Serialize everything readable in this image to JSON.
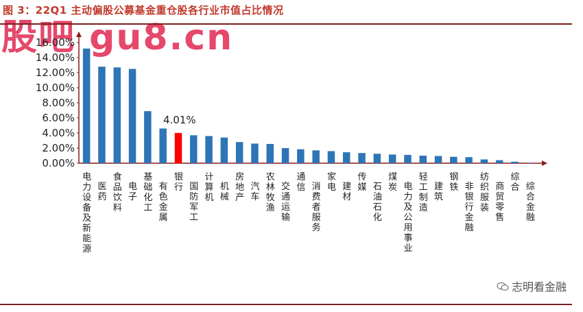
{
  "header": {
    "title": "图 3：22Q1 主动偏股公募基金重仓股各行业市值占比情况",
    "watermark": "股吧 gu8.cn"
  },
  "footer": {
    "brand": "志明看金融",
    "brand_icon": "wechat-icon"
  },
  "colors": {
    "bar": "#2e75b6",
    "highlight": "#ff0000",
    "axis": "#8b1a1a",
    "title": "#c0392b"
  },
  "chart_data": {
    "type": "bar",
    "title": "",
    "xlabel": "",
    "ylabel": "",
    "ylim": [
      0,
      16
    ],
    "yticks": [
      "0.00%",
      "2.00%",
      "4.00%",
      "6.00%",
      "8.00%",
      "10.00%",
      "12.00%",
      "14.00%",
      "16.00%"
    ],
    "categories": [
      "电力设备及新能源",
      "医药",
      "食品饮料",
      "电子",
      "基础化工",
      "有色金属",
      "银行",
      "国防军工",
      "计算机",
      "机械",
      "房地产",
      "汽车",
      "农林牧渔",
      "交通运输",
      "通信",
      "消费者服务",
      "家电",
      "建材",
      "传媒",
      "石油石化",
      "煤炭",
      "电力及公用事业",
      "轻工制造",
      "建筑",
      "钢铁",
      "非银行金融",
      "纺织服装",
      "商贸零售",
      "综合",
      "综合金融"
    ],
    "values": [
      15.2,
      12.8,
      12.7,
      12.5,
      6.9,
      4.6,
      4.01,
      3.7,
      3.6,
      3.4,
      2.8,
      2.6,
      2.55,
      2.0,
      1.85,
      1.7,
      1.6,
      1.45,
      1.35,
      1.25,
      1.15,
      1.1,
      1.0,
      0.95,
      0.85,
      0.8,
      0.5,
      0.4,
      0.2,
      0.05
    ],
    "highlight_index": 6,
    "annotation": "4.01%",
    "grid": false,
    "legend": "none"
  }
}
